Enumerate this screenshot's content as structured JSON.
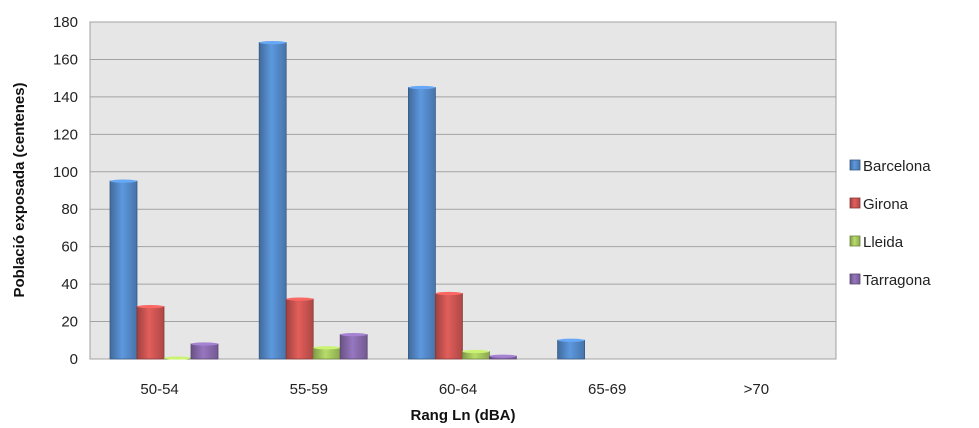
{
  "chart_data": {
    "type": "bar",
    "title": "",
    "xlabel": "Rang Ln (dBA)",
    "ylabel": "Població exposada (centenes)",
    "ylim": [
      0,
      180
    ],
    "yticks": [
      0,
      20,
      40,
      60,
      80,
      100,
      120,
      140,
      160,
      180
    ],
    "categories": [
      "50-54",
      "55-59",
      "60-64",
      "65-69",
      ">70"
    ],
    "series": [
      {
        "name": "Barcelona",
        "color": "#4f81bd",
        "values": [
          95,
          169,
          145,
          10,
          0
        ]
      },
      {
        "name": "Girona",
        "color": "#c0504d",
        "values": [
          28,
          32,
          35,
          0,
          0
        ]
      },
      {
        "name": "Lleida",
        "color": "#9bbb59",
        "values": [
          0.5,
          6,
          4,
          0,
          0
        ]
      },
      {
        "name": "Tarragona",
        "color": "#8064a2",
        "values": [
          8,
          13,
          1.5,
          0,
          0
        ]
      }
    ],
    "grid": true,
    "legend_position": "right"
  }
}
